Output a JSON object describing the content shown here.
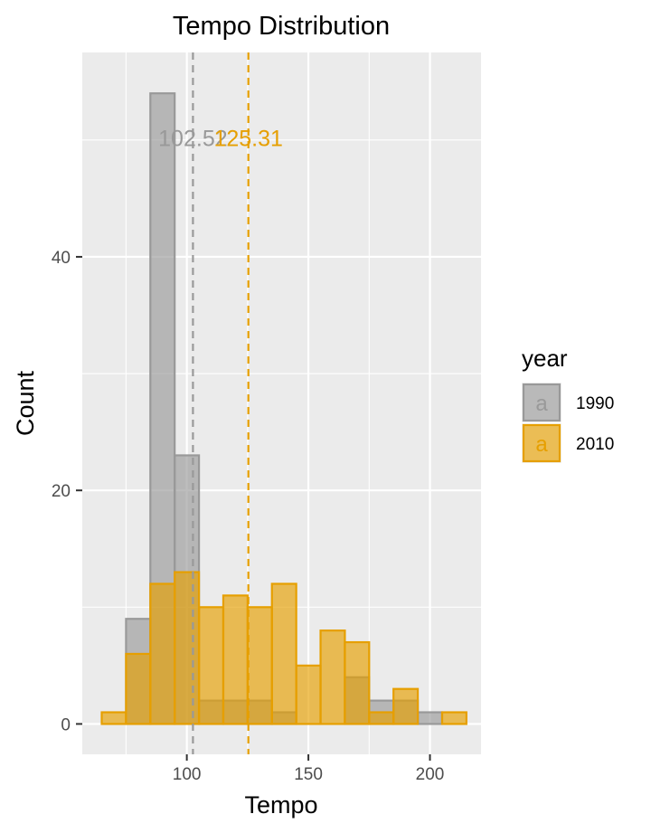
{
  "chart_data": {
    "type": "bar",
    "title": "Tempo Distribution",
    "xlabel": "Tempo",
    "ylabel": "Count",
    "xlim": [
      57,
      221
    ],
    "ylim": [
      -2.6,
      57.5
    ],
    "x_ticks": [
      100,
      150,
      200
    ],
    "y_ticks": [
      0,
      20,
      40
    ],
    "y_minor": [
      10,
      30,
      50
    ],
    "x_minor": [
      75,
      125,
      175
    ],
    "bin_width": 10,
    "grid": true,
    "legend": {
      "title": "year",
      "position": "right"
    },
    "series": [
      {
        "name": "1990",
        "fill": "#999999",
        "stroke": "#999999",
        "bins": [
          {
            "x0": 75,
            "x1": 85,
            "count": 9
          },
          {
            "x0": 85,
            "x1": 95,
            "count": 54
          },
          {
            "x0": 95,
            "x1": 105,
            "count": 23
          },
          {
            "x0": 105,
            "x1": 115,
            "count": 2
          },
          {
            "x0": 115,
            "x1": 125,
            "count": 2
          },
          {
            "x0": 125,
            "x1": 135,
            "count": 2
          },
          {
            "x0": 135,
            "x1": 145,
            "count": 1
          },
          {
            "x0": 165,
            "x1": 175,
            "count": 4
          },
          {
            "x0": 175,
            "x1": 185,
            "count": 2
          },
          {
            "x0": 185,
            "x1": 195,
            "count": 2
          },
          {
            "x0": 195,
            "x1": 205,
            "count": 1
          }
        ],
        "mean": 102.52,
        "mean_label": "102.52"
      },
      {
        "name": "2010",
        "fill": "#E69F00",
        "stroke": "#E69F00",
        "bins": [
          {
            "x0": 65,
            "x1": 75,
            "count": 1
          },
          {
            "x0": 75,
            "x1": 85,
            "count": 6
          },
          {
            "x0": 85,
            "x1": 95,
            "count": 12
          },
          {
            "x0": 95,
            "x1": 105,
            "count": 13
          },
          {
            "x0": 105,
            "x1": 115,
            "count": 10
          },
          {
            "x0": 115,
            "x1": 125,
            "count": 11
          },
          {
            "x0": 125,
            "x1": 135,
            "count": 10
          },
          {
            "x0": 135,
            "x1": 145,
            "count": 12
          },
          {
            "x0": 145,
            "x1": 155,
            "count": 5
          },
          {
            "x0": 155,
            "x1": 165,
            "count": 8
          },
          {
            "x0": 165,
            "x1": 175,
            "count": 7
          },
          {
            "x0": 175,
            "x1": 185,
            "count": 1
          },
          {
            "x0": 185,
            "x1": 195,
            "count": 3
          },
          {
            "x0": 205,
            "x1": 215,
            "count": 1
          }
        ],
        "mean": 125.31,
        "mean_label": "125.31"
      }
    ],
    "mean_label_y": 49.5,
    "legend_key_glyph": "a"
  }
}
